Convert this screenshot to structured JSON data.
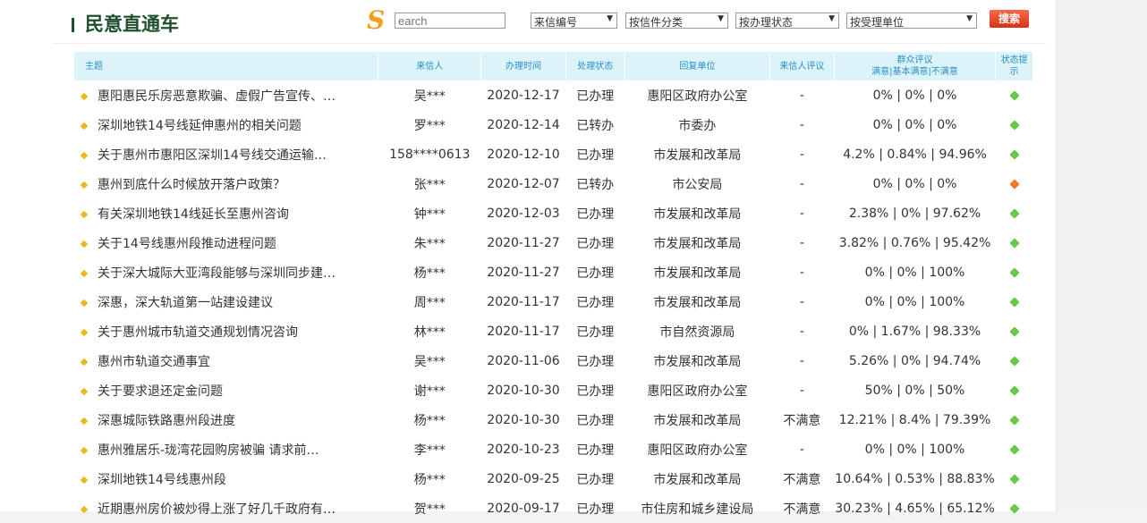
{
  "header": {
    "title": "民意直通车",
    "search_placeholder": "earch",
    "search_button": "搜索",
    "filters": [
      "来信编号",
      "按信件分类",
      "按办理状态",
      "按受理单位"
    ]
  },
  "columns": [
    "主题",
    "来信人",
    "办理时间",
    "处理状态",
    "回复单位",
    "来信人评议",
    "群众评议",
    "满意|基本满意|不满意",
    "状态提示"
  ],
  "colors": {
    "ok": "#6cc84a",
    "warn": "#f07a2a",
    "header_bg": "#dcf3fa"
  },
  "rows": [
    {
      "subject": "惠阳惠民乐房恶意欺骗、虚假广告宣传、…",
      "sender": "吴***",
      "date": "2020-12-17",
      "status": "已办理",
      "unit": "惠阳区政府办公室",
      "review": "-",
      "public": "0% | 0% | 0%",
      "state": "ok"
    },
    {
      "subject": "深圳地铁14号线延伸惠州的相关问题",
      "sender": "罗***",
      "date": "2020-12-14",
      "status": "已转办",
      "unit": "市委办",
      "review": "-",
      "public": "0% | 0% | 0%",
      "state": "ok"
    },
    {
      "subject": "关于惠州市惠阳区深圳14号线交通运输…",
      "sender": "158****0613",
      "date": "2020-12-10",
      "status": "已办理",
      "unit": "市发展和改革局",
      "review": "-",
      "public": "4.2% | 0.84% | 94.96%",
      "state": "ok"
    },
    {
      "subject": "惠州到底什么时候放开落户政策？",
      "sender": "张***",
      "date": "2020-12-07",
      "status": "已转办",
      "unit": "市公安局",
      "review": "-",
      "public": "0% | 0% | 0%",
      "state": "warn"
    },
    {
      "subject": "有关深圳地铁14线延长至惠州咨询",
      "sender": "钟***",
      "date": "2020-12-03",
      "status": "已办理",
      "unit": "市发展和改革局",
      "review": "-",
      "public": "2.38% | 0% | 97.62%",
      "state": "ok"
    },
    {
      "subject": "关于14号线惠州段推动进程问题",
      "sender": "朱***",
      "date": "2020-11-27",
      "status": "已办理",
      "unit": "市发展和改革局",
      "review": "-",
      "public": "3.82% | 0.76% | 95.42%",
      "state": "ok"
    },
    {
      "subject": "关于深大城际大亚湾段能够与深圳同步建…",
      "sender": "杨***",
      "date": "2020-11-27",
      "status": "已办理",
      "unit": "市发展和改革局",
      "review": "-",
      "public": "0% | 0% | 100%",
      "state": "ok"
    },
    {
      "subject": "深惠，深大轨道第一站建设建议",
      "sender": "周***",
      "date": "2020-11-17",
      "status": "已办理",
      "unit": "市发展和改革局",
      "review": "-",
      "public": "0% | 0% | 100%",
      "state": "ok"
    },
    {
      "subject": "关于惠州城市轨道交通规划情况咨询",
      "sender": "林***",
      "date": "2020-11-17",
      "status": "已办理",
      "unit": "市自然资源局",
      "review": "-",
      "public": "0% | 1.67% | 98.33%",
      "state": "ok"
    },
    {
      "subject": "惠州市轨道交通事宜",
      "sender": "吴***",
      "date": "2020-11-06",
      "status": "已办理",
      "unit": "市发展和改革局",
      "review": "-",
      "public": "5.26% | 0% | 94.74%",
      "state": "ok"
    },
    {
      "subject": "关于要求退还定金问题",
      "sender": "谢***",
      "date": "2020-10-30",
      "status": "已办理",
      "unit": "惠阳区政府办公室",
      "review": "-",
      "public": "50% | 0% | 50%",
      "state": "ok"
    },
    {
      "subject": "深惠城际铁路惠州段进度",
      "sender": "杨***",
      "date": "2020-10-30",
      "status": "已办理",
      "unit": "市发展和改革局",
      "review": "不满意",
      "public": "12.21% | 8.4% | 79.39%",
      "state": "ok"
    },
    {
      "subject": "惠州雅居乐-珑湾花园购房被骗 请求前…",
      "sender": "李***",
      "date": "2020-10-23",
      "status": "已办理",
      "unit": "惠阳区政府办公室",
      "review": "-",
      "public": "0% | 0% | 100%",
      "state": "ok"
    },
    {
      "subject": "深圳地铁14号线惠州段",
      "sender": "杨***",
      "date": "2020-09-25",
      "status": "已办理",
      "unit": "市发展和改革局",
      "review": "不满意",
      "public": "10.64% | 0.53% | 88.83%",
      "state": "ok"
    },
    {
      "subject": "近期惠州房价被炒得上涨了好几千政府有…",
      "sender": "贺***",
      "date": "2020-09-17",
      "status": "已办理",
      "unit": "市住房和城乡建设局",
      "review": "不满意",
      "public": "30.23% | 4.65% | 65.12%",
      "state": "ok"
    }
  ]
}
